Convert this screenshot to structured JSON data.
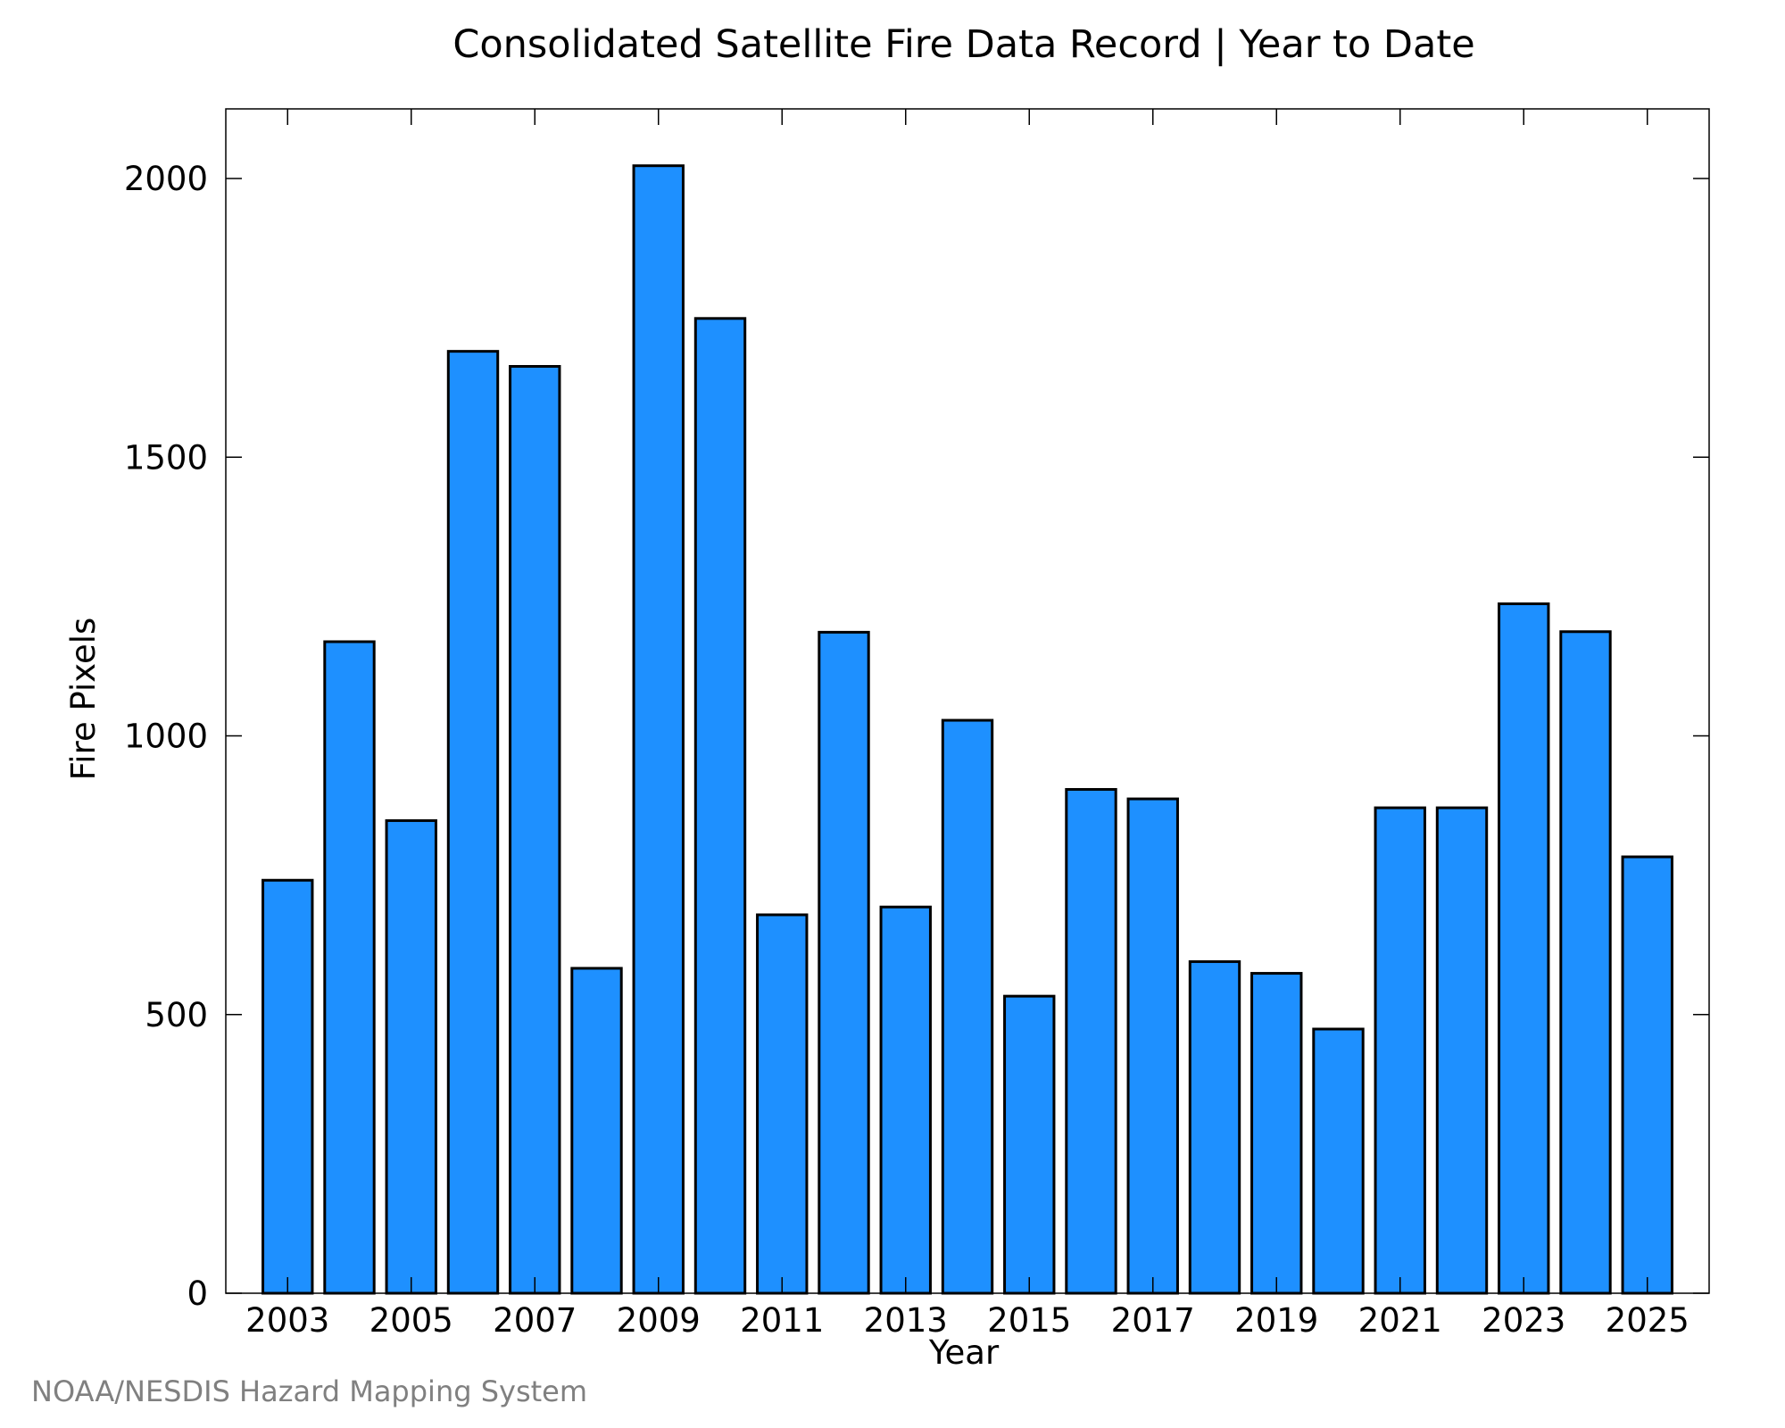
{
  "chart_data": {
    "type": "bar",
    "title": "Consolidated Satellite Fire Data Record | Year to Date",
    "xlabel": "Year",
    "ylabel": "Fire Pixels",
    "categories": [
      "2003",
      "2004",
      "2005",
      "2006",
      "2007",
      "2008",
      "2009",
      "2010",
      "2011",
      "2012",
      "2013",
      "2014",
      "2015",
      "2016",
      "2017",
      "2018",
      "2019",
      "2020",
      "2021",
      "2022",
      "2023",
      "2024",
      "2025"
    ],
    "values": [
      741,
      1169,
      848,
      1690,
      1663,
      583,
      2023,
      1749,
      679,
      1186,
      693,
      1028,
      533,
      904,
      887,
      595,
      574,
      474,
      871,
      871,
      1237,
      1187,
      783
    ],
    "ylim": [
      0,
      2125
    ],
    "yticks": [
      0,
      500,
      1000,
      1500,
      2000
    ],
    "xtick_labels": [
      "2003",
      "2005",
      "2007",
      "2009",
      "2011",
      "2013",
      "2015",
      "2017",
      "2019",
      "2021",
      "2023",
      "2025"
    ],
    "bar_color": "#1e90ff",
    "bar_edge_color": "#000000",
    "grid": false,
    "legend": "none"
  },
  "credit": "NOAA/NESDIS Hazard Mapping System"
}
